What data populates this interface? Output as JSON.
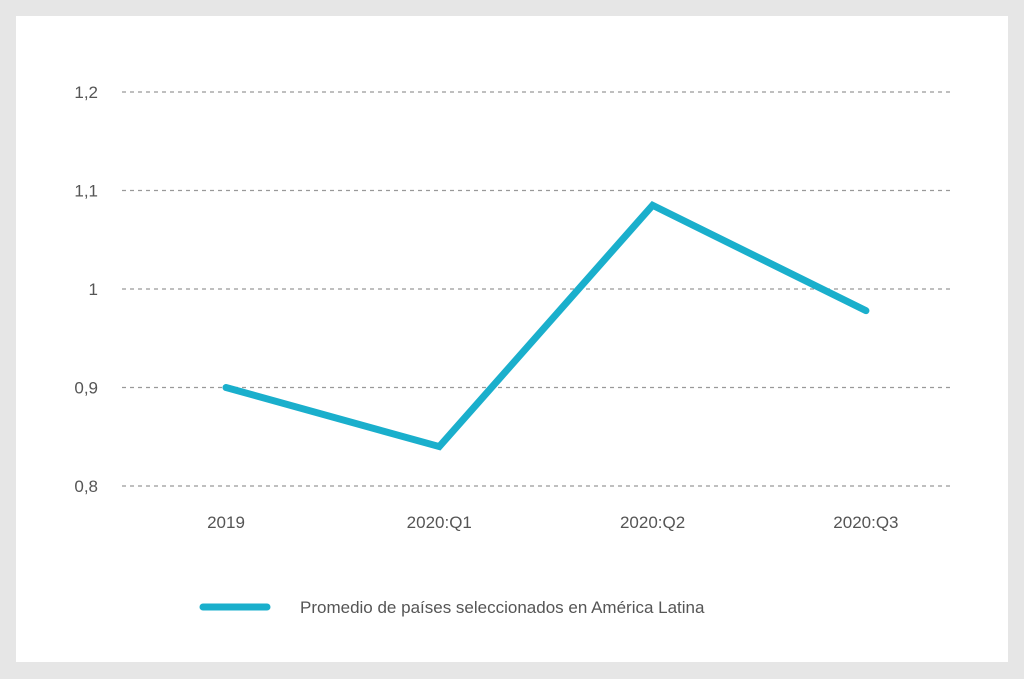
{
  "chart_data": {
    "type": "line",
    "categories": [
      "2019",
      "2020:Q1",
      "2020:Q2",
      "2020:Q3"
    ],
    "series": [
      {
        "name": "Promedio de países seleccionados en América Latina",
        "values": [
          0.9,
          0.84,
          1.085,
          0.978
        ],
        "color": "#1aafcc"
      }
    ],
    "ylim": [
      0.8,
      1.2
    ],
    "yticks": [
      0.8,
      0.9,
      1.0,
      1.1,
      1.2
    ],
    "ytick_labels": [
      "0,8",
      "0,9",
      "1",
      "1,1",
      "1,2"
    ],
    "grid": "horizontal dashed",
    "legend": "bottom"
  }
}
